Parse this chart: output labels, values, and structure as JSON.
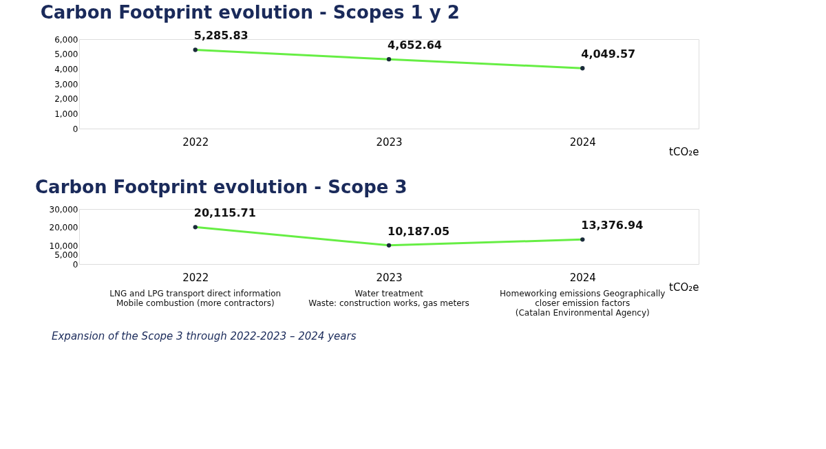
{
  "chart_data": [
    {
      "type": "line",
      "title": "Carbon Footprint evolution - Scopes 1 y 2",
      "xlabel": "tCO₂e",
      "categories": [
        "2022",
        "2023",
        "2024"
      ],
      "series": [
        {
          "color": "#66ee44",
          "values": [
            5285.83,
            4652.64,
            4049.57
          ],
          "value_labels": [
            "5,285.83",
            "4,652.64",
            "4,049.57"
          ]
        }
      ],
      "ylim": [
        0,
        6000
      ],
      "yticks": [
        0,
        {
          "value": 1000,
          "label": "1,000"
        },
        {
          "value": 2000,
          "label": "2,000"
        },
        {
          "value": 3000,
          "label": "3,000"
        },
        {
          "value": 4000,
          "label": "4,000"
        },
        {
          "value": 5000,
          "label": "5,000"
        },
        {
          "value": 6000,
          "label": "6,000"
        }
      ],
      "marker": "circle"
    },
    {
      "type": "line",
      "title": "Carbon Footprint evolution - Scope 3",
      "xlabel": "tCO₂e",
      "categories": [
        "2022",
        "2023",
        "2024"
      ],
      "series": [
        {
          "color": "#66ee44",
          "values": [
            20115.71,
            10187.05,
            13376.94
          ],
          "value_labels": [
            "20,115.71",
            "10,187.05",
            "13,376.94"
          ]
        }
      ],
      "ylim": [
        0,
        30000
      ],
      "yticks": [
        0,
        {
          "value": 5000,
          "label": "5,000"
        },
        {
          "value": 10000,
          "label": "10,000"
        },
        {
          "value": 20000,
          "label": "20,000"
        },
        {
          "value": 30000,
          "label": "30,000"
        }
      ],
      "marker": "circle",
      "annotations": [
        "LNG and LPG transport direct information\nMobile combustion (more contractors)",
        "Water treatment\nWaste: construction works, gas meters",
        "Homeworking emissions Geographically\ncloser emission factors\n(Catalan Environmental Agency)",
        "Expansion of the Scope 3 through 2022-2023 – 2024 years"
      ]
    }
  ]
}
